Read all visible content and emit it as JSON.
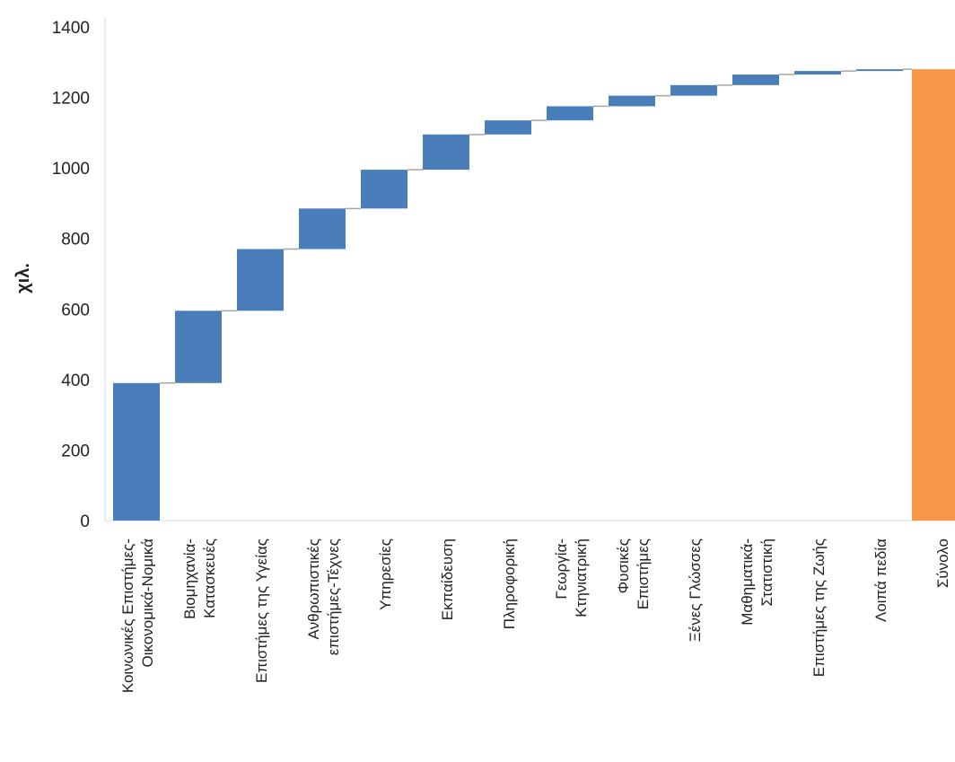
{
  "chart_data": {
    "type": "bar",
    "subtype": "waterfall",
    "ylabel": "χιλ.",
    "ylim": [
      0,
      1400
    ],
    "yticks": [
      0,
      200,
      400,
      600,
      800,
      1000,
      1200,
      1400
    ],
    "grid": false,
    "legend": "none",
    "categories": [
      [
        "Κοινωνικές Επιστήμες-",
        "Οικονομικά-Νομικά"
      ],
      [
        "Βιομηχανία-",
        "Κατασκευές"
      ],
      [
        "Επιστήμες της Υγείας"
      ],
      [
        "Ανθρωπιστικές",
        "επιστήμες-Τέχνες"
      ],
      [
        "Υπηρεσίες"
      ],
      [
        "Εκπαίδευση"
      ],
      [
        "Πληροφορική"
      ],
      [
        "Γεωργία-",
        "Κτηνιατρική"
      ],
      [
        "Φυσικές",
        "Επιστήμες"
      ],
      [
        "Ξένες Γλώσσες"
      ],
      [
        "Μαθηματικά-",
        "Στατιστική"
      ],
      [
        "Επιστήμες της Ζωής"
      ],
      [
        "Λοιπά πεδία"
      ],
      [
        "Σύνολο"
      ]
    ],
    "values": [
      390,
      205,
      175,
      115,
      110,
      100,
      40,
      40,
      30,
      30,
      30,
      10,
      5,
      1280
    ],
    "is_total": [
      false,
      false,
      false,
      false,
      false,
      false,
      false,
      false,
      false,
      false,
      false,
      false,
      false,
      true
    ],
    "colors": {
      "increase": "#4a7ebb",
      "total": "#f79646",
      "connector": "#a6a6a6",
      "axis": "#d9d9d9"
    }
  }
}
